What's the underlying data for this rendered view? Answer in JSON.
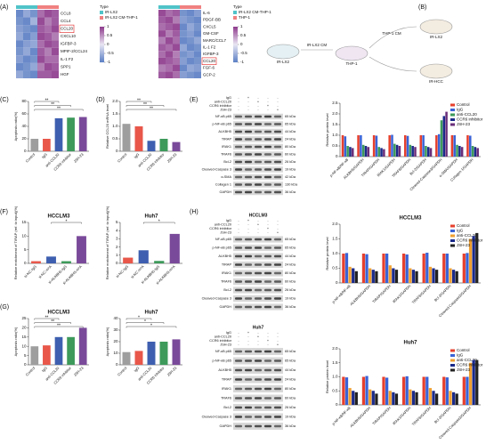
{
  "panel_labels": [
    "(A)",
    "(B)",
    "(C)",
    "(D)",
    "(E)",
    "(F)",
    "(G)",
    "(H)"
  ],
  "schematic": {
    "labels": [
      "IR-LX2",
      "IR-LX2 CM",
      "THP-1",
      "THP-1 CM",
      "IR-LX2",
      "IR-HCC"
    ]
  },
  "blots": [
    {
      "title": null,
      "conditions": [
        {
          "name": "IgG",
          "signs": [
            "-",
            "+",
            "-",
            "-",
            "-"
          ]
        },
        {
          "name": "anti-CCL20",
          "signs": [
            "-",
            "-",
            "+",
            "-",
            "-"
          ]
        },
        {
          "name": "CCR6 inhibitor",
          "signs": [
            "-",
            "-",
            "-",
            "+",
            "-"
          ]
        },
        {
          "name": "JSH-23",
          "signs": [
            "-",
            "-",
            "-",
            "-",
            "+"
          ]
        }
      ],
      "proteins": [
        {
          "name": "NF-κB p65",
          "size": "65 kDa"
        },
        {
          "name": "p-NF-κB p65",
          "size": "65 kDa"
        },
        {
          "name": "ALKBH5",
          "size": "44 kDa"
        },
        {
          "name": "TIRAP",
          "size": "24 kDa"
        },
        {
          "name": "IRAK1",
          "size": "80 kDa"
        },
        {
          "name": "TRAF6",
          "size": "60 kDa"
        },
        {
          "name": "Bcl-2",
          "size": "26 kDa"
        },
        {
          "name": "Cleaved-Caspase 3",
          "size": "19 kDa"
        },
        {
          "name": "α-SMA",
          "size": "42 kDa"
        },
        {
          "name": "Collagen 1",
          "size": "130 kDa"
        },
        {
          "name": "GAPDH",
          "size": "36 kDa"
        }
      ]
    },
    {
      "title": "HCCLM3",
      "conditions": [
        {
          "name": "IgG",
          "signs": [
            "-",
            "+",
            "-",
            "-",
            "-"
          ]
        },
        {
          "name": "anti-CCL20",
          "signs": [
            "-",
            "-",
            "+",
            "-",
            "-"
          ]
        },
        {
          "name": "CCR6 inhibitor",
          "signs": [
            "-",
            "-",
            "-",
            "+",
            "-"
          ]
        },
        {
          "name": "JSH-23",
          "signs": [
            "-",
            "-",
            "-",
            "-",
            "+"
          ]
        }
      ],
      "proteins": [
        {
          "name": "NF-κB p65",
          "size": "65 kDa"
        },
        {
          "name": "p-NF-κB p65",
          "size": "65 kDa"
        },
        {
          "name": "ALKBH5",
          "size": "44 kDa"
        },
        {
          "name": "TIRAP",
          "size": "24 kDa"
        },
        {
          "name": "IRAK1",
          "size": "80 kDa"
        },
        {
          "name": "TRAF6",
          "size": "60 kDa"
        },
        {
          "name": "Bcl-2",
          "size": "26 kDa"
        },
        {
          "name": "Cleaved-Caspase 3",
          "size": "19 kDa"
        },
        {
          "name": "GAPDH",
          "size": "36 kDa"
        }
      ]
    },
    {
      "title": "Huh7",
      "conditions": [
        {
          "name": "IgG",
          "signs": [
            "-",
            "+",
            "-",
            "-",
            "-"
          ]
        },
        {
          "name": "anti-CCL20",
          "signs": [
            "-",
            "-",
            "+",
            "-",
            "-"
          ]
        },
        {
          "name": "CCR6 inhibitor",
          "signs": [
            "-",
            "-",
            "-",
            "+",
            "-"
          ]
        },
        {
          "name": "JSH-23",
          "signs": [
            "-",
            "-",
            "-",
            "-",
            "+"
          ]
        }
      ],
      "proteins": [
        {
          "name": "NF-κB p65",
          "size": "65 kDa"
        },
        {
          "name": "p-NF-κB p65",
          "size": "65 kDa"
        },
        {
          "name": "ALKBH5",
          "size": "44 kDa"
        },
        {
          "name": "TIRAP",
          "size": "24 kDa"
        },
        {
          "name": "IRAK1",
          "size": "80 kDa"
        },
        {
          "name": "TRAF6",
          "size": "60 kDa"
        },
        {
          "name": "Bcl-2",
          "size": "26 kDa"
        },
        {
          "name": "Cleaved-Caspase 3",
          "size": "19 kDa"
        },
        {
          "name": "GAPDH",
          "size": "36 kDa"
        }
      ]
    }
  ],
  "chart_data": [
    {
      "type": "heatmap",
      "legend_title": "Type",
      "types": [
        {
          "name": "IR-LX2",
          "color": "#4fc3c8"
        },
        {
          "name": "IR-LX2 CM-THP-1",
          "color": "#f08080"
        }
      ],
      "column_types": [
        "IR-LX2",
        "IR-LX2",
        "IR-LX2",
        "IR-LX2 CM-THP-1",
        "IR-LX2 CM-THP-1",
        "IR-LX2 CM-THP-1"
      ],
      "rows": [
        "CCL8",
        "CCL4",
        "CCL20",
        "CXCL10",
        "IGFBP-3",
        "MPIF-2/CCL24",
        "IL-1 F2",
        "SPP1",
        "HGF"
      ],
      "highlighted_row": "CCL20",
      "colormap": [
        "#5b7fc4",
        "#e9e6f3",
        "#8e3a8c"
      ],
      "colorbar_ticks": [
        1,
        0.5,
        0,
        -0.5,
        -1
      ],
      "values": [
        [
          -0.9,
          -0.6,
          -0.8,
          0.7,
          0.9,
          0.8
        ],
        [
          -0.8,
          -0.9,
          -0.5,
          0.9,
          0.6,
          0.8
        ],
        [
          -0.7,
          -0.8,
          -0.9,
          0.8,
          0.7,
          0.9
        ],
        [
          -0.6,
          -0.9,
          -0.7,
          0.9,
          0.8,
          0.6
        ],
        [
          -0.9,
          -0.7,
          -0.6,
          0.7,
          0.9,
          0.8
        ],
        [
          -0.8,
          -0.6,
          -0.9,
          0.8,
          0.6,
          0.9
        ],
        [
          -0.7,
          -0.9,
          -0.8,
          0.9,
          0.7,
          0.7
        ],
        [
          -0.9,
          -0.8,
          -0.6,
          0.6,
          0.9,
          0.8
        ],
        [
          -0.6,
          -0.8,
          -0.9,
          0.8,
          0.8,
          0.9
        ]
      ]
    },
    {
      "type": "heatmap",
      "legend_title": "Type",
      "types": [
        {
          "name": "IR-LX2 CM-THP-1",
          "color": "#4fc3c8"
        },
        {
          "name": "THP-1",
          "color": "#f08080"
        }
      ],
      "column_types": [
        "IR-LX2 CM-THP-1",
        "IR-LX2 CM-THP-1",
        "IR-LX2 CM-THP-1",
        "THP-1",
        "THP-1",
        "THP-1"
      ],
      "rows": [
        "IL-6",
        "PDGF-BB",
        "CXCL5",
        "GM-CSF",
        "MARC/CCL7",
        "IL-1 F2",
        "IGFBP-3",
        "CCL20",
        "FGF-6",
        "GCP-2"
      ],
      "highlighted_row": "CCL20",
      "colormap": [
        "#5b7fc4",
        "#e9e6f3",
        "#8e3a8c"
      ],
      "colorbar_ticks": [
        1,
        0.5,
        0,
        -0.5,
        -1
      ],
      "values": [
        [
          0.9,
          0.7,
          0.8,
          -0.8,
          -0.9,
          -0.7
        ],
        [
          0.8,
          0.9,
          0.6,
          -0.7,
          -0.8,
          -0.9
        ],
        [
          0.7,
          0.8,
          0.9,
          -0.9,
          -0.6,
          -0.8
        ],
        [
          0.9,
          0.6,
          0.8,
          -0.8,
          -0.7,
          -0.9
        ],
        [
          0.6,
          0.9,
          0.7,
          -0.9,
          -0.8,
          -0.6
        ],
        [
          0.8,
          0.7,
          0.9,
          -0.6,
          -0.9,
          -0.8
        ],
        [
          0.7,
          0.9,
          0.6,
          -0.8,
          -0.7,
          -0.9
        ],
        [
          0.9,
          0.8,
          0.7,
          -0.7,
          -0.9,
          -0.8
        ],
        [
          0.6,
          0.7,
          0.9,
          -0.9,
          -0.6,
          -0.7
        ],
        [
          0.8,
          0.9,
          0.7,
          -0.7,
          -0.8,
          -0.9
        ]
      ]
    },
    {
      "type": "bar",
      "ylabel": "Apoptosis ratio(%)",
      "categories": [
        "Control",
        "IgG",
        "anti-CCL20",
        "CCR6 inhibitor",
        "JSH-23"
      ],
      "values": [
        20,
        20,
        53,
        54,
        55
      ],
      "colors": [
        "#9e9e9e",
        "#e8574a",
        "#3e5fb0",
        "#3d9a5a",
        "#7a4a9a"
      ],
      "ylim": [
        0,
        80
      ],
      "yticks": [
        0,
        20,
        40,
        60,
        80
      ],
      "significance": [
        {
          "from": 0,
          "to": 2,
          "label": "**"
        },
        {
          "from": 0,
          "to": 3,
          "label": "**"
        },
        {
          "from": 0,
          "to": 4,
          "label": "**"
        }
      ]
    },
    {
      "type": "bar",
      "ylabel": "Relative CCL20 mRNA level",
      "categories": [
        "Control",
        "IgG",
        "anti-CCL20",
        "CCR6 inhibitor",
        "JSH-23"
      ],
      "values": [
        1.1,
        1.0,
        0.42,
        0.5,
        0.37
      ],
      "colors": [
        "#9e9e9e",
        "#e8574a",
        "#3e5fb0",
        "#3d9a5a",
        "#7a4a9a"
      ],
      "ylim": [
        0,
        2
      ],
      "yticks": [
        0,
        0.5,
        {
          "value": 1,
          "label": "1.0"
        },
        1.5,
        {
          "value": 2,
          "label": "2.0"
        }
      ],
      "significance": [
        {
          "from": 0,
          "to": 2,
          "label": "**"
        },
        {
          "from": 0,
          "to": 3,
          "label": "**"
        },
        {
          "from": 0,
          "to": 4,
          "label": "**"
        }
      ]
    },
    {
      "type": "grouped_bar",
      "ylabel": "Relative protein level",
      "categories": [
        "p-NF-κB/NF-κB",
        "ALKBH5/GAPDH",
        "TIRAP/GAPDH",
        "IRAK1/GAPDH",
        "TRAF6/GAPDH",
        "Bcl-2/GAPDH",
        "Cleaved-Caspase3/GAPDH",
        "α-SMA/GAPDH",
        "Collagen 1/GAPDH"
      ],
      "series": [
        {
          "name": "Control",
          "color": "#e6402d",
          "values": [
            1,
            1,
            1,
            1,
            1,
            1,
            1,
            1,
            1
          ]
        },
        {
          "name": "IgG",
          "color": "#3a63d6",
          "values": [
            0.95,
            1,
            0.98,
            1.02,
            0.97,
            1,
            1.05,
            1,
            0.98
          ]
        },
        {
          "name": "anti-CCL20",
          "color": "#3d9a5a",
          "values": [
            0.5,
            0.55,
            0.45,
            0.6,
            0.55,
            0.5,
            1.7,
            0.55,
            0.5
          ]
        },
        {
          "name": "CCR6 inhibitor",
          "color": "#1b2a8a",
          "values": [
            0.45,
            0.5,
            0.4,
            0.55,
            0.5,
            0.45,
            1.9,
            0.5,
            0.45
          ]
        },
        {
          "name": "JSH-23",
          "color": "#6a2f7a",
          "values": [
            0.4,
            0.45,
            0.35,
            0.5,
            0.45,
            0.4,
            2.1,
            0.45,
            0.4
          ]
        }
      ],
      "ylim": [
        0,
        2.5
      ],
      "yticks": [
        0,
        0.5,
        {
          "value": 1,
          "label": "1.0"
        },
        1.5,
        {
          "value": 2,
          "label": "2.0"
        },
        2.5
      ],
      "legend": "upper right"
    },
    {
      "type": "bar",
      "title": "HCCLM3",
      "ylabel": "Relative enrichment of TIRAP (ref. to input)(%)",
      "categories": [
        "si-NC-IgG",
        "si-NC-m⁶A",
        "si-ALKBH5-IgG",
        "si-ALKBH5-m⁶A"
      ],
      "values": [
        0.8,
        2.5,
        0.8,
        10
      ],
      "colors": [
        "#e8574a",
        "#3e5fb0",
        "#3d9a5a",
        "#7a4a9a"
      ],
      "ylim": [
        0,
        15
      ],
      "yticks": [
        0,
        5,
        10,
        15
      ],
      "significance": [
        {
          "from": 1,
          "to": 3,
          "label": "*"
        }
      ]
    },
    {
      "type": "bar",
      "title": "Huh7",
      "ylabel": "Relative enrichment of TIRAP (ref. to input)(%)",
      "categories": [
        "si-NC-IgG",
        "si-NC-m⁶A",
        "si-ALKBH5-IgG",
        "si-ALKBH5-m⁶A"
      ],
      "values": [
        0.7,
        1.6,
        0.3,
        3.6
      ],
      "colors": [
        "#e8574a",
        "#3e5fb0",
        "#3d9a5a",
        "#7a4a9a"
      ],
      "ylim": [
        0,
        5
      ],
      "yticks": [
        0,
        1,
        2,
        3,
        4,
        5
      ],
      "significance": [
        {
          "from": 1,
          "to": 3,
          "label": "*"
        }
      ]
    },
    {
      "type": "bar",
      "title": "HCCLM3",
      "ylabel": "Apoptosis ratio(%)",
      "categories": [
        "Control",
        "IgG",
        "anti-CCL20",
        "CCR6 inhibitor",
        "JSH-23"
      ],
      "values": [
        10,
        10.5,
        15,
        15,
        20
      ],
      "colors": [
        "#9e9e9e",
        "#e8574a",
        "#3e5fb0",
        "#3d9a5a",
        "#7a4a9a"
      ],
      "ylim": [
        0,
        25
      ],
      "yticks": [
        0,
        5,
        10,
        15,
        20,
        25
      ],
      "significance": [
        {
          "from": 0,
          "to": 2,
          "label": "**"
        },
        {
          "from": 0,
          "to": 3,
          "label": "**"
        },
        {
          "from": 0,
          "to": 4,
          "label": "**"
        }
      ]
    },
    {
      "type": "bar",
      "title": "Huh7",
      "ylabel": "Apoptosis ratio(%)",
      "categories": [
        "Control",
        "IgG",
        "anti-CCL20",
        "CCR6 inhibitor",
        "JSH-23"
      ],
      "values": [
        11,
        12,
        20,
        20,
        22
      ],
      "colors": [
        "#9e9e9e",
        "#e8574a",
        "#3e5fb0",
        "#3d9a5a",
        "#7a4a9a"
      ],
      "ylim": [
        0,
        40
      ],
      "yticks": [
        0,
        10,
        20,
        30,
        40
      ],
      "significance": [
        {
          "from": 0,
          "to": 2,
          "label": "*"
        },
        {
          "from": 0,
          "to": 3,
          "label": "*"
        },
        {
          "from": 0,
          "to": 4,
          "label": "*"
        }
      ]
    },
    {
      "type": "grouped_bar",
      "title": "HCCLM3",
      "ylabel": "Relative protein level",
      "categories": [
        "p-NF-κB/NF-κB",
        "ALKBH5/GAPDH",
        "TIRAP/GAPDH",
        "IRAK1/GAPDH",
        "TRAF6/GAPDH",
        "Bcl-2/GAPDH",
        "Cleaved-Caspase3/GAPDH"
      ],
      "series": [
        {
          "name": "Control",
          "color": "#e6402d",
          "values": [
            1,
            1,
            1,
            1,
            1,
            1,
            1
          ]
        },
        {
          "name": "IgG",
          "color": "#3a63d6",
          "values": [
            1.02,
            0.98,
            1,
            0.97,
            1.03,
            1,
            1.02
          ]
        },
        {
          "name": "anti-CCL20",
          "color": "#f0a030",
          "values": [
            0.55,
            0.5,
            0.6,
            0.5,
            0.55,
            0.5,
            1.5
          ]
        },
        {
          "name": "CCR6 inhibitor",
          "color": "#1b2a8a",
          "values": [
            0.5,
            0.45,
            0.5,
            0.45,
            0.5,
            0.45,
            1.6
          ]
        },
        {
          "name": "JSH-23",
          "color": "#222222",
          "values": [
            0.4,
            0.4,
            0.45,
            0.4,
            0.45,
            0.4,
            1.7
          ]
        }
      ],
      "ylim": [
        0,
        2
      ],
      "yticks": [
        0,
        0.5,
        {
          "value": 1,
          "label": "1.0"
        },
        1.5,
        {
          "value": 2,
          "label": "2.0"
        }
      ],
      "legend": "upper right"
    },
    {
      "type": "grouped_bar",
      "title": "Huh7",
      "ylabel": "Relative protein level",
      "categories": [
        "p-NF-κB/NF-κB",
        "ALKBH5/GAPDH",
        "TIRAP/GAPDH",
        "IRAK1/GAPDH",
        "TRAF6/GAPDH",
        "Bcl-2/GAPDH",
        "Cleaved-Caspase3/GAPDH"
      ],
      "series": [
        {
          "name": "Control",
          "color": "#e6402d",
          "values": [
            1,
            1,
            1,
            1,
            1,
            1,
            1
          ]
        },
        {
          "name": "IgG",
          "color": "#3a63d6",
          "values": [
            0.98,
            1.03,
            0.97,
            1.02,
            1,
            0.98,
            1
          ]
        },
        {
          "name": "anti-CCL20",
          "color": "#f0a030",
          "values": [
            0.6,
            0.55,
            0.5,
            0.55,
            0.6,
            0.5,
            1.5
          ]
        },
        {
          "name": "CCR6 inhibitor",
          "color": "#1b2a8a",
          "values": [
            0.5,
            0.5,
            0.45,
            0.5,
            0.5,
            0.45,
            1.6
          ]
        },
        {
          "name": "JSH-23",
          "color": "#222222",
          "values": [
            0.45,
            0.4,
            0.4,
            0.45,
            0.4,
            0.4,
            1.6
          ]
        }
      ],
      "ylim": [
        0,
        2
      ],
      "yticks": [
        0,
        0.5,
        {
          "value": 1,
          "label": "1.0"
        },
        1.5,
        {
          "value": 2,
          "label": "2.0"
        }
      ],
      "legend": "upper right"
    }
  ]
}
